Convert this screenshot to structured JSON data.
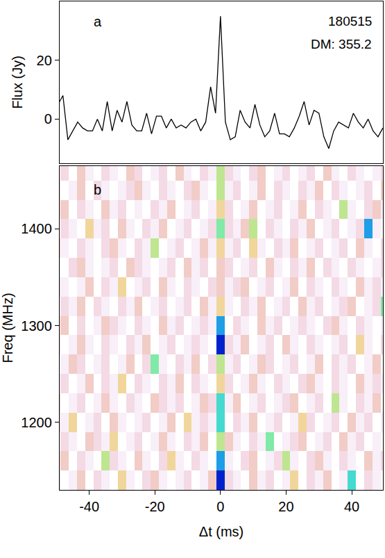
{
  "chart_data": [
    {
      "type": "line",
      "panel_label": "a",
      "annotations": [
        "180515",
        "DM: 355.2"
      ],
      "ylabel": "Flux (Jy)",
      "color": "#000000",
      "tick_labels": "y",
      "x": [
        -49.5,
        -48,
        -46.5,
        -45,
        -43.5,
        -42,
        -40.5,
        -39,
        -37.5,
        -36,
        -34.5,
        -33,
        -31.5,
        -30,
        -28.5,
        -27,
        -25.5,
        -24,
        -22.5,
        -21,
        -19.5,
        -18,
        -16.5,
        -15,
        -13.5,
        -12,
        -10.5,
        -9,
        -7.5,
        -6,
        -4.5,
        -3,
        -1.5,
        0,
        1.5,
        3,
        4.5,
        6,
        7.5,
        9,
        10.5,
        12,
        13.5,
        15,
        16.5,
        18,
        19.5,
        21,
        22.5,
        24,
        25.5,
        27,
        28.5,
        30,
        31.5,
        33,
        34.5,
        36,
        37.5,
        39,
        40.5,
        42,
        43.5,
        45,
        46.5,
        48,
        49.5
      ],
      "values": [
        5,
        8,
        -7,
        -4,
        -1,
        -3,
        -4,
        -4,
        0,
        -4,
        6,
        -4,
        3,
        -1,
        6,
        -2,
        -4,
        -4,
        2,
        -5,
        1,
        1,
        -3,
        0,
        -3,
        -2,
        -3,
        -1,
        0,
        -4,
        -1,
        11,
        2,
        35,
        -1,
        -7,
        -6,
        3,
        -1,
        -3,
        5,
        -2,
        -6,
        -4,
        2,
        -5,
        -5,
        -6,
        -3,
        1,
        6,
        -2,
        3,
        2,
        -6,
        -10,
        -4,
        -1,
        -2,
        -3,
        2,
        -1,
        -3,
        0,
        -4,
        -6,
        -3
      ],
      "xlim": [
        -49,
        49.5
      ],
      "ylim": [
        -15,
        40
      ],
      "yticks": [
        0,
        20
      ]
    },
    {
      "type": "heatmap",
      "panel_label": "b",
      "xlabel": "Δt (ms)",
      "ylabel": "Freq (MHz)",
      "x": [
        -50,
        -47.5,
        -45,
        -42.5,
        -40,
        -37.5,
        -35,
        -32.5,
        -30,
        -27.5,
        -25,
        -22.5,
        -20,
        -17.5,
        -15,
        -12.5,
        -10,
        -7.5,
        -5,
        -2.5,
        0,
        2.5,
        5,
        7.5,
        10,
        12.5,
        15,
        17.5,
        20,
        22.5,
        25,
        27.5,
        30,
        32.5,
        35,
        37.5,
        40,
        42.5,
        45,
        47.5,
        50
      ],
      "y": [
        1140,
        1160,
        1180,
        1200,
        1220,
        1240,
        1260,
        1280,
        1300,
        1320,
        1340,
        1360,
        1380,
        1400,
        1420,
        1440,
        1460
      ],
      "cells": [
        [
          2,
          0,
          1,
          3,
          0,
          2,
          1,
          0,
          4,
          1,
          0,
          2,
          3,
          1,
          0,
          1,
          2,
          0,
          1,
          3,
          9,
          2,
          1,
          0,
          3,
          1,
          2,
          0,
          1,
          4,
          0,
          2,
          1,
          3,
          0,
          1,
          7,
          0,
          2,
          1,
          0
        ],
        [
          1,
          3,
          0,
          2,
          1,
          0,
          5,
          2,
          1,
          0,
          3,
          1,
          0,
          2,
          4,
          1,
          0,
          2,
          1,
          0,
          8,
          1,
          0,
          2,
          3,
          0,
          1,
          2,
          5,
          1,
          0,
          2,
          3,
          1,
          0,
          2,
          1,
          0,
          3,
          1,
          2
        ],
        [
          0,
          2,
          1,
          0,
          3,
          2,
          1,
          4,
          0,
          1,
          2,
          0,
          1,
          3,
          1,
          0,
          2,
          1,
          3,
          0,
          5,
          3,
          1,
          0,
          2,
          1,
          6,
          0,
          1,
          2,
          3,
          0,
          1,
          2,
          0,
          3,
          1,
          2,
          0,
          1,
          0
        ],
        [
          2,
          1,
          4,
          0,
          1,
          2,
          0,
          3,
          1,
          0,
          1,
          2,
          0,
          1,
          3,
          0,
          4,
          1,
          2,
          1,
          7,
          0,
          2,
          1,
          3,
          0,
          1,
          2,
          0,
          1,
          4,
          2,
          0,
          1,
          2,
          0,
          3,
          1,
          2,
          0,
          1
        ],
        [
          3,
          0,
          1,
          2,
          0,
          1,
          3,
          1,
          0,
          2,
          1,
          0,
          3,
          2,
          1,
          2,
          0,
          1,
          3,
          2,
          7,
          1,
          3,
          0,
          1,
          2,
          0,
          1,
          2,
          3,
          0,
          1,
          2,
          0,
          5,
          1,
          0,
          2,
          1,
          3,
          0
        ],
        [
          1,
          2,
          0,
          1,
          3,
          0,
          2,
          1,
          4,
          0,
          2,
          1,
          0,
          2,
          1,
          3,
          0,
          2,
          1,
          0,
          4,
          2,
          0,
          1,
          3,
          1,
          0,
          2,
          1,
          0,
          2,
          3,
          1,
          0,
          2,
          1,
          0,
          3,
          1,
          2,
          1
        ],
        [
          0,
          1,
          3,
          2,
          0,
          1,
          2,
          0,
          1,
          3,
          0,
          2,
          6,
          1,
          0,
          2,
          1,
          3,
          0,
          2,
          5,
          1,
          2,
          0,
          1,
          3,
          2,
          0,
          1,
          2,
          0,
          1,
          3,
          0,
          2,
          1,
          2,
          0,
          1,
          3,
          0
        ],
        [
          2,
          0,
          1,
          3,
          1,
          0,
          2,
          1,
          0,
          2,
          1,
          3,
          0,
          1,
          2,
          0,
          1,
          2,
          1,
          0,
          9,
          2,
          1,
          3,
          0,
          1,
          2,
          0,
          3,
          1,
          0,
          2,
          1,
          0,
          1,
          2,
          0,
          4,
          1,
          0,
          2
        ],
        [
          1,
          3,
          0,
          2,
          0,
          1,
          3,
          2,
          1,
          0,
          2,
          1,
          0,
          3,
          1,
          2,
          0,
          1,
          2,
          1,
          8,
          0,
          2,
          1,
          0,
          3,
          1,
          2,
          0,
          1,
          2,
          1,
          0,
          2,
          3,
          1,
          0,
          2,
          1,
          0,
          1
        ],
        [
          0,
          2,
          1,
          3,
          0,
          2,
          1,
          0,
          2,
          1,
          3,
          0,
          1,
          2,
          0,
          1,
          2,
          0,
          3,
          1,
          4,
          1,
          0,
          2,
          1,
          3,
          0,
          1,
          2,
          0,
          3,
          1,
          2,
          0,
          1,
          2,
          3,
          0,
          1,
          2,
          6
        ],
        [
          2,
          1,
          0,
          1,
          3,
          0,
          2,
          1,
          4,
          0,
          1,
          2,
          0,
          3,
          1,
          0,
          2,
          1,
          0,
          2,
          3,
          1,
          2,
          3,
          0,
          1,
          2,
          0,
          1,
          3,
          0,
          2,
          1,
          0,
          2,
          1,
          0,
          3,
          1,
          2,
          1
        ],
        [
          1,
          0,
          2,
          3,
          1,
          0,
          1,
          2,
          0,
          3,
          2,
          1,
          0,
          1,
          2,
          0,
          3,
          1,
          2,
          0,
          3,
          2,
          0,
          1,
          2,
          0,
          3,
          1,
          0,
          2,
          1,
          3,
          0,
          2,
          1,
          0,
          2,
          1,
          0,
          1,
          2
        ],
        [
          3,
          1,
          0,
          2,
          1,
          0,
          2,
          3,
          1,
          0,
          2,
          1,
          5,
          0,
          1,
          2,
          0,
          1,
          3,
          1,
          4,
          1,
          2,
          0,
          4,
          1,
          0,
          2,
          1,
          3,
          0,
          1,
          2,
          0,
          1,
          2,
          0,
          3,
          1,
          0,
          2
        ],
        [
          0,
          2,
          1,
          0,
          4,
          1,
          2,
          0,
          3,
          1,
          0,
          2,
          1,
          3,
          0,
          1,
          2,
          0,
          1,
          2,
          6,
          2,
          1,
          3,
          5,
          0,
          2,
          1,
          0,
          2,
          1,
          3,
          0,
          1,
          2,
          0,
          1,
          2,
          8,
          1,
          0
        ],
        [
          1,
          3,
          0,
          2,
          1,
          0,
          3,
          1,
          2,
          0,
          1,
          0,
          2,
          1,
          3,
          0,
          1,
          2,
          0,
          1,
          4,
          2,
          0,
          1,
          3,
          0,
          1,
          2,
          0,
          1,
          3,
          0,
          2,
          1,
          0,
          5,
          1,
          0,
          2,
          3,
          1
        ],
        [
          2,
          0,
          1,
          3,
          0,
          2,
          1,
          0,
          1,
          2,
          3,
          1,
          0,
          2,
          1,
          0,
          2,
          3,
          1,
          0,
          5,
          1,
          2,
          0,
          1,
          3,
          0,
          2,
          1,
          0,
          2,
          1,
          3,
          0,
          2,
          1,
          0,
          1,
          2,
          0,
          3
        ],
        [
          1,
          2,
          0,
          3,
          1,
          0,
          2,
          1,
          0,
          3,
          2,
          0,
          1,
          2,
          0,
          3,
          1,
          0,
          2,
          1,
          5,
          2,
          1,
          0,
          2,
          3,
          0,
          1,
          2,
          0,
          1,
          2,
          0,
          3,
          1,
          0,
          2,
          1,
          0,
          1,
          2
        ]
      ],
      "zlim": [
        0,
        9
      ],
      "xlim": [
        -49,
        49.5
      ],
      "xticks": [
        -40,
        -20,
        0,
        20,
        40
      ],
      "ylim": [
        1130,
        1465
      ],
      "yticks": [
        1200,
        1300,
        1400
      ]
    }
  ]
}
